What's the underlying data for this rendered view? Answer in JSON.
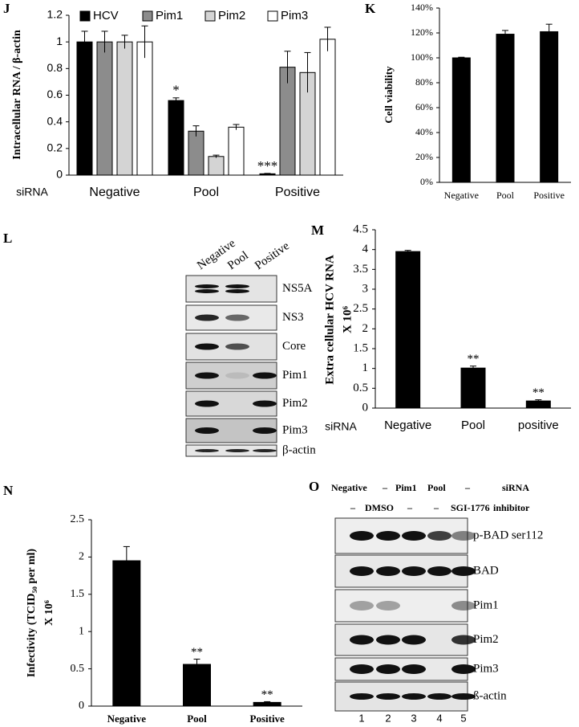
{
  "chart_data": [
    {
      "type": "bar",
      "panel": "J",
      "ylabel": [
        "Intracellular  RNA / β-actin"
      ],
      "xlabel": "siRNA",
      "categories": [
        "Negative",
        "Pool",
        "Positive"
      ],
      "series": [
        {
          "name": "HCV",
          "color": "#000000",
          "values": [
            1.0,
            0.56,
            0.01
          ],
          "errors": [
            0.08,
            0.02,
            0.003
          ],
          "annotations": [
            null,
            "*",
            "***"
          ]
        },
        {
          "name": "Pim1",
          "color": "#8c8c8c",
          "values": [
            1.0,
            0.33,
            0.81
          ],
          "errors": [
            0.08,
            0.04,
            0.12
          ]
        },
        {
          "name": "Pim2",
          "color": "#d4d4d4",
          "values": [
            1.0,
            0.14,
            0.77
          ],
          "errors": [
            0.05,
            0.01,
            0.15
          ]
        },
        {
          "name": "Pim3",
          "color": "#ffffff",
          "values": [
            1.0,
            0.36,
            1.02
          ],
          "errors": [
            0.12,
            0.02,
            0.09
          ]
        }
      ],
      "ylim": [
        0,
        1.2
      ],
      "yticks": [
        0,
        0.2,
        0.4,
        0.6,
        0.8,
        1,
        1.2
      ],
      "legend": "top"
    },
    {
      "type": "bar",
      "panel": "K",
      "ylabel": [
        "Cell  viability"
      ],
      "categories": [
        "Negative",
        "Pool",
        "Positive"
      ],
      "series": [
        {
          "color": "#000000",
          "values": [
            100,
            119,
            121
          ],
          "errors": [
            0.5,
            3,
            6
          ]
        }
      ],
      "ylim": [
        0,
        140
      ],
      "yticks": [
        {
          "value": 0,
          "label": "0%"
        },
        {
          "value": 20,
          "label": "20%"
        },
        {
          "value": 40,
          "label": "40%"
        },
        {
          "value": 60,
          "label": "60%"
        },
        {
          "value": 80,
          "label": "80%"
        },
        {
          "value": 100,
          "label": "100%"
        },
        {
          "value": 120,
          "label": "120%"
        },
        {
          "value": 140,
          "label": "140%"
        }
      ]
    },
    {
      "type": "bar",
      "panel": "M",
      "ylabel": [
        "Extra cellular HCV RNA",
        "X 10⁶"
      ],
      "xlabel": "siRNA",
      "categories": [
        "Negative",
        "Pool",
        "positive"
      ],
      "series": [
        {
          "color": "#000000",
          "values": [
            3.95,
            1.01,
            0.18
          ],
          "errors": [
            0.03,
            0.05,
            0.03
          ],
          "annotations": [
            null,
            "**",
            "**"
          ]
        }
      ],
      "ylim": [
        0,
        4.5
      ],
      "yticks": [
        0,
        0.5,
        1,
        1.5,
        2,
        2.5,
        3,
        3.5,
        4,
        4.5
      ]
    },
    {
      "type": "bar",
      "panel": "N",
      "ylabel": [
        "Infectivity (TCID₅₀ per ml)",
        "X 10⁶"
      ],
      "categories": [
        "Negative",
        "Pool",
        "Positive"
      ],
      "series": [
        {
          "color": "#000000",
          "values": [
            1.95,
            0.56,
            0.05
          ],
          "errors": [
            0.19,
            0.07,
            0.01
          ],
          "annotations": [
            null,
            "**",
            "**"
          ]
        }
      ],
      "ylim": [
        0,
        2.5
      ],
      "yticks": [
        0,
        0.5,
        1,
        1.5,
        2,
        2.5
      ]
    }
  ],
  "blots": [
    {
      "panel": "L",
      "lanes": [
        "Negative",
        "Pool",
        "Positive"
      ],
      "rows": [
        "NS5A",
        "NS3",
        "Core",
        "Pim1",
        "Pim2",
        "Pim3",
        "β-actin"
      ]
    },
    {
      "panel": "O",
      "header_rows": [
        [
          "Negative",
          "–",
          "Pim1",
          "Pool",
          "–",
          "siRNA"
        ],
        [
          "–",
          "DMSO",
          "–",
          "–",
          "SGI-1776",
          "inhibitor"
        ]
      ],
      "rows": [
        "p-BAD ser112",
        "BAD",
        "Pim1",
        "Pim2",
        "Pim3",
        "ß-actin"
      ],
      "lane_numbers": [
        "1",
        "2",
        "3",
        "4",
        "5"
      ]
    }
  ]
}
